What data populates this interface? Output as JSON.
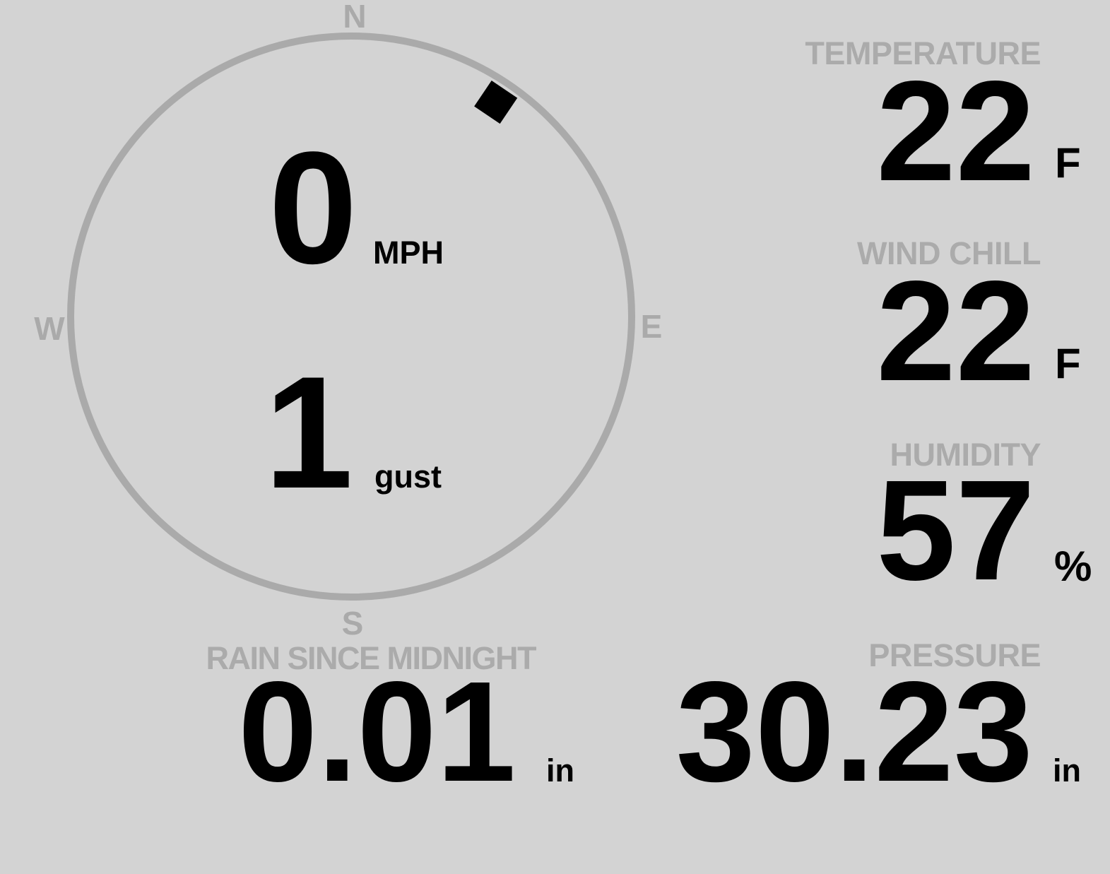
{
  "compass": {
    "north": "N",
    "south": "S",
    "east": "E",
    "west": "W",
    "wind_direction_degrees": 34,
    "ring_color": "#aaaaaa",
    "marker_color": "#000000"
  },
  "wind": {
    "speed": "0",
    "speed_unit": "MPH",
    "gust": "1",
    "gust_unit": "gust"
  },
  "temperature": {
    "label": "TEMPERATURE",
    "value": "22",
    "unit": "F"
  },
  "wind_chill": {
    "label": "WIND CHILL",
    "value": "22",
    "unit": "F"
  },
  "humidity": {
    "label": "HUMIDITY",
    "value": "57",
    "unit": "%"
  },
  "rain": {
    "label": "RAIN SINCE MIDNIGHT",
    "value": "0.01",
    "unit": "in"
  },
  "pressure": {
    "label": "PRESSURE",
    "value": "30.23",
    "unit": "in"
  },
  "colors": {
    "background": "#d3d3d3",
    "label": "#ababab",
    "value": "#000000"
  }
}
